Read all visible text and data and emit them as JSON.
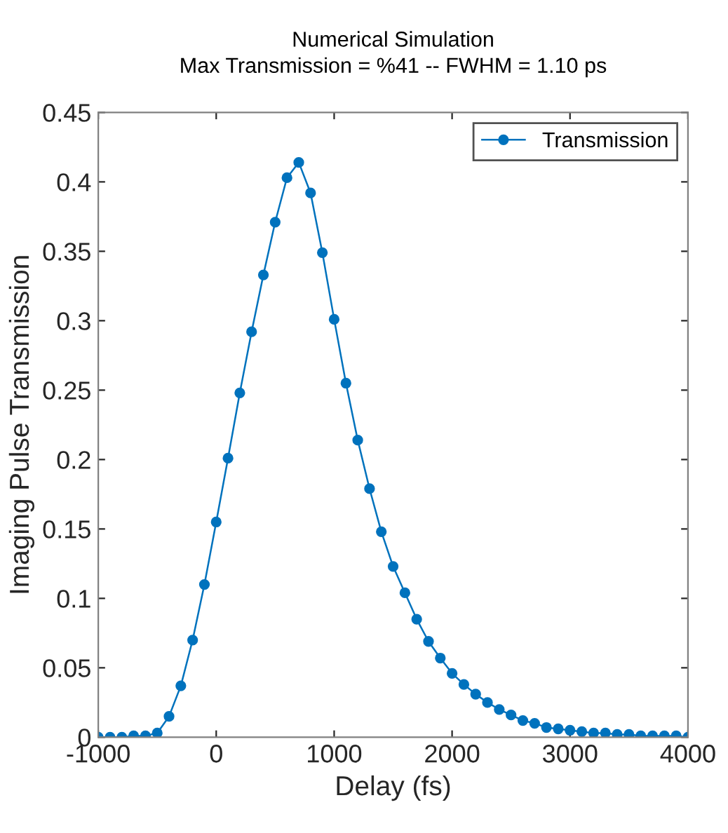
{
  "chart_data": {
    "type": "line",
    "title": "Numerical Simulation\nMax Transmission = %41 -- FWHM = 1.10 ps",
    "xlabel": "Delay (fs)",
    "ylabel": "Imaging Pulse Transmission",
    "x": [
      -1000,
      -900,
      -800,
      -700,
      -600,
      -500,
      -400,
      -300,
      -200,
      -100,
      0,
      100,
      200,
      300,
      400,
      500,
      600,
      700,
      800,
      900,
      1000,
      1100,
      1200,
      1300,
      1400,
      1500,
      1600,
      1700,
      1800,
      1900,
      2000,
      2100,
      2200,
      2300,
      2400,
      2500,
      2600,
      2700,
      2800,
      2900,
      3000,
      3100,
      3200,
      3300,
      3400,
      3500,
      3600,
      3700,
      3800,
      3900,
      4000
    ],
    "series": [
      {
        "name": "Transmission",
        "color": "#0072bd",
        "values": [
          0,
          0,
          0,
          0.001,
          0.001,
          0.003,
          0.015,
          0.037,
          0.07,
          0.11,
          0.155,
          0.201,
          0.248,
          0.292,
          0.333,
          0.371,
          0.403,
          0.414,
          0.392,
          0.349,
          0.301,
          0.255,
          0.214,
          0.179,
          0.148,
          0.123,
          0.104,
          0.085,
          0.069,
          0.057,
          0.046,
          0.038,
          0.031,
          0.025,
          0.02,
          0.016,
          0.012,
          0.01,
          0.007,
          0.006,
          0.005,
          0.004,
          0.003,
          0.003,
          0.002,
          0.002,
          0.001,
          0.001,
          0.001,
          0.001,
          0
        ]
      }
    ],
    "xlim": [
      -1000,
      4000
    ],
    "xticks": [
      -1000,
      0,
      1000,
      2000,
      3000,
      4000
    ],
    "ylim": [
      0,
      0.45
    ],
    "yticks": [
      0,
      0.05,
      0.1,
      0.15,
      0.2,
      0.25,
      0.3,
      0.35,
      0.4,
      0.45
    ],
    "grid": false,
    "legend": "top right",
    "marker": "circle",
    "line_style": "solid"
  }
}
